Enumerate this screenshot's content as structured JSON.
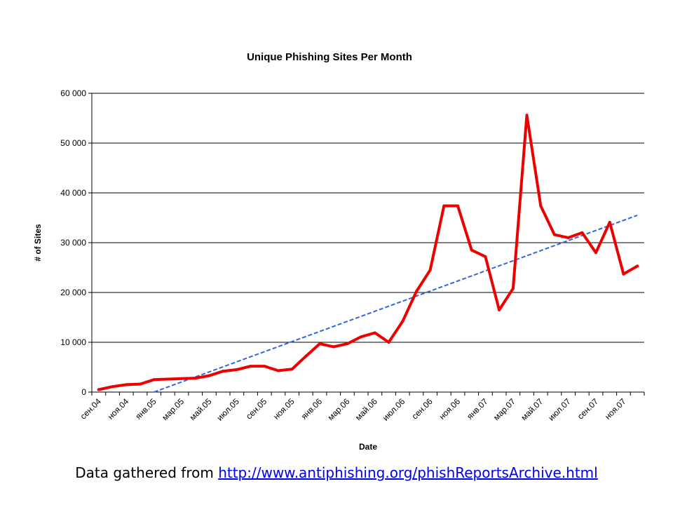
{
  "source_note": {
    "prefix": "Data gathered from ",
    "link_text": "http://www.antiphishing.org/phishReportsArchive.html"
  },
  "colors": {
    "series_line": "#ee0000",
    "trend_line": "#3366dd",
    "gridline": "#000000",
    "link": "#0000ee"
  },
  "chart_data": {
    "type": "line",
    "title": "Unique Phishing Sites Per Month",
    "xlabel": "Date",
    "ylabel": "# of Sites",
    "ylim": [
      0,
      60000
    ],
    "yticks": [
      0,
      10000,
      20000,
      30000,
      40000,
      50000,
      60000
    ],
    "ytick_labels": [
      "0",
      "10 000",
      "20 000",
      "30 000",
      "40 000",
      "50 000",
      "60 000"
    ],
    "grid": "horizontal",
    "x": [
      "сен.04",
      "окт.04",
      "ноя.04",
      "дек.04",
      "янв.05",
      "фев.05",
      "мар.05",
      "апр.05",
      "май.05",
      "июн.05",
      "июл.05",
      "авг.05",
      "сен.05",
      "окт.05",
      "ноя.05",
      "дек.05",
      "янв.06",
      "фев.06",
      "мар.06",
      "апр.06",
      "май.06",
      "июн.06",
      "июл.06",
      "авг.06",
      "сен.06",
      "окт.06",
      "ноя.06",
      "дек.06",
      "янв.07",
      "фев.07",
      "мар.07",
      "апр.07",
      "май.07",
      "июн.07",
      "июл.07",
      "авг.07",
      "сен.07",
      "окт.07",
      "ноя.07",
      "дек.07"
    ],
    "xtick_labels": [
      "сен.04",
      "ноя.04",
      "янв.05",
      "мар.05",
      "май.05",
      "июл.05",
      "сен.05",
      "ноя.05",
      "янв.06",
      "мар.06",
      "май.06",
      "июл.06",
      "сен.06",
      "ноя.06",
      "янв.07",
      "мар.07",
      "май.07",
      "июл.07",
      "сен.07",
      "ноя.07"
    ],
    "series": [
      {
        "values": [
          500,
          1100,
          1500,
          1600,
          2500,
          2600,
          2700,
          2800,
          3300,
          4200,
          4500,
          5200,
          5200,
          4300,
          4600,
          7200,
          9700,
          9100,
          9700,
          11100,
          11900,
          10000,
          14200,
          20200,
          24500,
          37400,
          37400,
          28500,
          27200,
          16500,
          20800,
          55600,
          37400,
          31600,
          31000,
          32000,
          28000,
          34100,
          23700,
          25300
        ]
      }
    ],
    "trendline": {
      "type": "linear",
      "style": "dashed",
      "from": {
        "x": "янв.05",
        "y": 0
      },
      "to": {
        "x": "дек.07",
        "y": 35500
      }
    }
  }
}
